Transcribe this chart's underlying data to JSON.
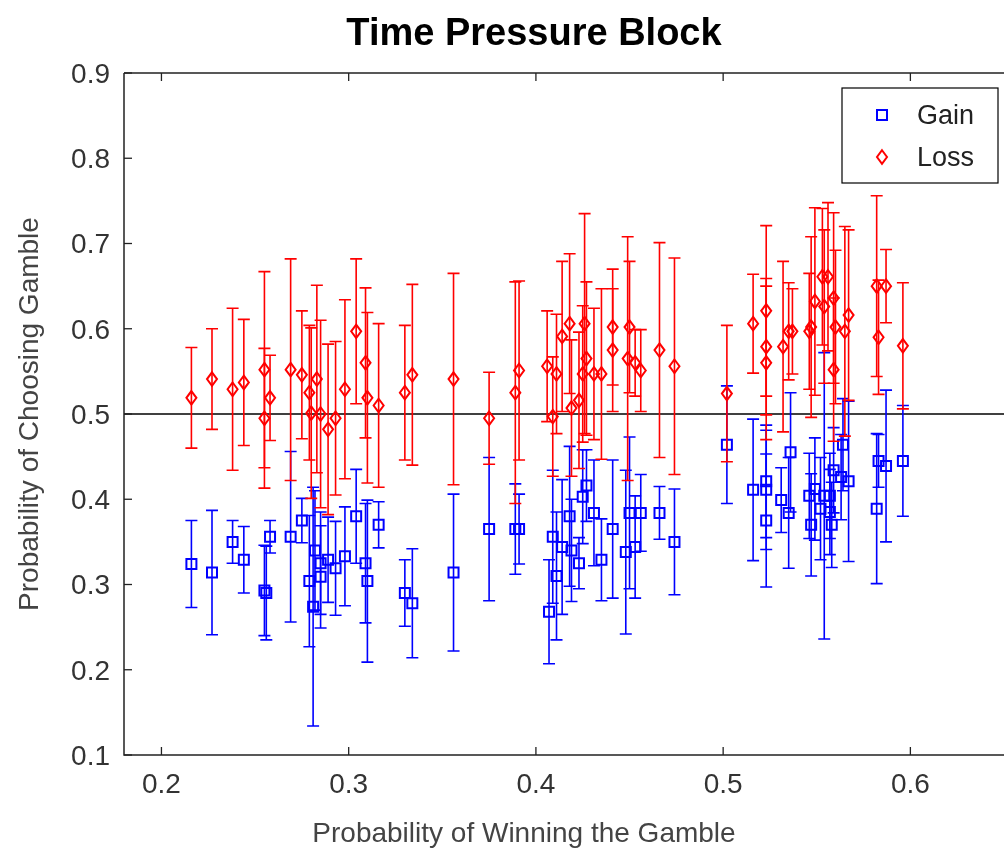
{
  "chart_data": {
    "type": "scatter",
    "title": "Time Pressure Block",
    "xlabel": "Probability of Winning the Gamble",
    "ylabel": "Probability of Choosing Gamble",
    "xlim": [
      0.18,
      0.65
    ],
    "xticks": [
      0.2,
      0.3,
      0.4,
      0.5,
      0.6
    ],
    "ylim": [
      0.1,
      0.9
    ],
    "yticks": [
      0.1,
      0.2,
      0.3,
      0.4,
      0.5,
      0.6,
      0.7,
      0.8,
      0.9
    ],
    "grid": false,
    "legend": "top right",
    "ref_lines": [
      {
        "axis": "y",
        "value": 0.5,
        "color": "#000000"
      }
    ],
    "series": [
      {
        "name": "Gain",
        "color": "#0000ff",
        "marker": "square",
        "x": [
          0.216,
          0.227,
          0.238,
          0.244,
          0.255,
          0.256,
          0.258,
          0.269,
          0.275,
          0.279,
          0.281,
          0.282,
          0.285,
          0.285,
          0.289,
          0.293,
          0.298,
          0.304,
          0.309,
          0.31,
          0.316,
          0.33,
          0.334,
          0.356,
          0.375,
          0.389,
          0.391,
          0.407,
          0.409,
          0.411,
          0.414,
          0.418,
          0.419,
          0.423,
          0.425,
          0.427,
          0.431,
          0.435,
          0.441,
          0.448,
          0.45,
          0.453,
          0.456,
          0.466,
          0.474,
          0.502,
          0.516,
          0.523,
          0.523,
          0.523,
          0.531,
          0.535,
          0.536,
          0.546,
          0.547,
          0.549,
          0.552,
          0.554,
          0.557,
          0.557,
          0.559,
          0.558,
          0.563,
          0.564,
          0.567,
          0.582,
          0.583,
          0.587,
          0.596
        ],
        "values": [
          0.324,
          0.314,
          0.35,
          0.329,
          0.293,
          0.29,
          0.356,
          0.356,
          0.375,
          0.304,
          0.274,
          0.34,
          0.325,
          0.309,
          0.329,
          0.319,
          0.333,
          0.38,
          0.325,
          0.304,
          0.37,
          0.29,
          0.278,
          0.314,
          0.365,
          0.365,
          0.365,
          0.268,
          0.356,
          0.31,
          0.344,
          0.38,
          0.34,
          0.325,
          0.403,
          0.416,
          0.384,
          0.329,
          0.365,
          0.338,
          0.384,
          0.344,
          0.384,
          0.384,
          0.35,
          0.464,
          0.411,
          0.421,
          0.411,
          0.375,
          0.399,
          0.384,
          0.455,
          0.404,
          0.37,
          0.412,
          0.389,
          0.404,
          0.404,
          0.385,
          0.434,
          0.37,
          0.426,
          0.464,
          0.421,
          0.389,
          0.445,
          0.439,
          0.445
        ],
        "errors": [
          0.051,
          0.073,
          0.025,
          0.039,
          0.053,
          0.055,
          0.019,
          0.1,
          0.026,
          0.077,
          0.14,
          0.07,
          0.06,
          0.06,
          0.05,
          0.055,
          0.058,
          0.055,
          0.07,
          0.095,
          0.027,
          0.039,
          0.064,
          0.092,
          0.084,
          0.053,
          0.041,
          0.061,
          0.078,
          0.075,
          0.079,
          0.082,
          0.06,
          0.03,
          0.055,
          0.042,
          0.062,
          0.048,
          0.081,
          0.096,
          0.089,
          0.06,
          0.045,
          0.031,
          0.062,
          0.069,
          0.083,
          0.066,
          0.07,
          0.078,
          0.038,
          0.065,
          0.07,
          0.05,
          0.06,
          0.06,
          0.06,
          0.168,
          0.05,
          0.05,
          0.05,
          0.05,
          0.05,
          0.054,
          0.094,
          0.088,
          0.031,
          0.089,
          0.065
        ]
      },
      {
        "name": "Loss",
        "color": "#ff0000",
        "marker": "diamond",
        "x": [
          0.216,
          0.227,
          0.238,
          0.244,
          0.255,
          0.255,
          0.258,
          0.269,
          0.275,
          0.279,
          0.28,
          0.283,
          0.285,
          0.289,
          0.293,
          0.298,
          0.304,
          0.309,
          0.31,
          0.316,
          0.33,
          0.334,
          0.356,
          0.375,
          0.389,
          0.391,
          0.406,
          0.409,
          0.411,
          0.414,
          0.418,
          0.419,
          0.423,
          0.425,
          0.426,
          0.427,
          0.431,
          0.435,
          0.441,
          0.441,
          0.449,
          0.45,
          0.453,
          0.456,
          0.466,
          0.474,
          0.502,
          0.516,
          0.523,
          0.523,
          0.523,
          0.532,
          0.535,
          0.537,
          0.546,
          0.547,
          0.549,
          0.553,
          0.556,
          0.554,
          0.559,
          0.559,
          0.56,
          0.565,
          0.567,
          0.582,
          0.583,
          0.587,
          0.596
        ],
        "values": [
          0.519,
          0.541,
          0.529,
          0.537,
          0.552,
          0.495,
          0.519,
          0.552,
          0.546,
          0.525,
          0.501,
          0.541,
          0.5,
          0.482,
          0.495,
          0.529,
          0.597,
          0.56,
          0.519,
          0.51,
          0.525,
          0.546,
          0.541,
          0.495,
          0.525,
          0.551,
          0.556,
          0.497,
          0.547,
          0.591,
          0.606,
          0.507,
          0.516,
          0.547,
          0.606,
          0.565,
          0.547,
          0.547,
          0.602,
          0.575,
          0.565,
          0.602,
          0.56,
          0.551,
          0.575,
          0.556,
          0.524,
          0.606,
          0.621,
          0.579,
          0.56,
          0.579,
          0.597,
          0.597,
          0.597,
          0.602,
          0.632,
          0.661,
          0.661,
          0.626,
          0.636,
          0.552,
          0.602,
          0.597,
          0.616,
          0.65,
          0.59,
          0.65,
          0.58
        ],
        "errors": [
          0.059,
          0.059,
          0.095,
          0.074,
          0.115,
          0.082,
          0.05,
          0.13,
          0.075,
          0.079,
          0.1,
          0.11,
          0.11,
          0.1,
          0.09,
          0.105,
          0.085,
          0.088,
          0.1,
          0.096,
          0.079,
          0.106,
          0.124,
          0.054,
          0.13,
          0.105,
          0.065,
          0.07,
          0.07,
          0.088,
          0.082,
          0.08,
          0.08,
          0.08,
          0.129,
          0.09,
          0.077,
          0.1,
          0.068,
          0.072,
          0.143,
          0.077,
          0.039,
          0.048,
          0.126,
          0.127,
          0.08,
          0.058,
          0.1,
          0.08,
          0.09,
          0.1,
          0.057,
          0.05,
          0.068,
          0.106,
          0.11,
          0.08,
          0.087,
          0.09,
          0.1,
          0.084,
          0.09,
          0.123,
          0.1,
          0.106,
          0.067,
          0.043,
          0.074
        ]
      }
    ]
  }
}
